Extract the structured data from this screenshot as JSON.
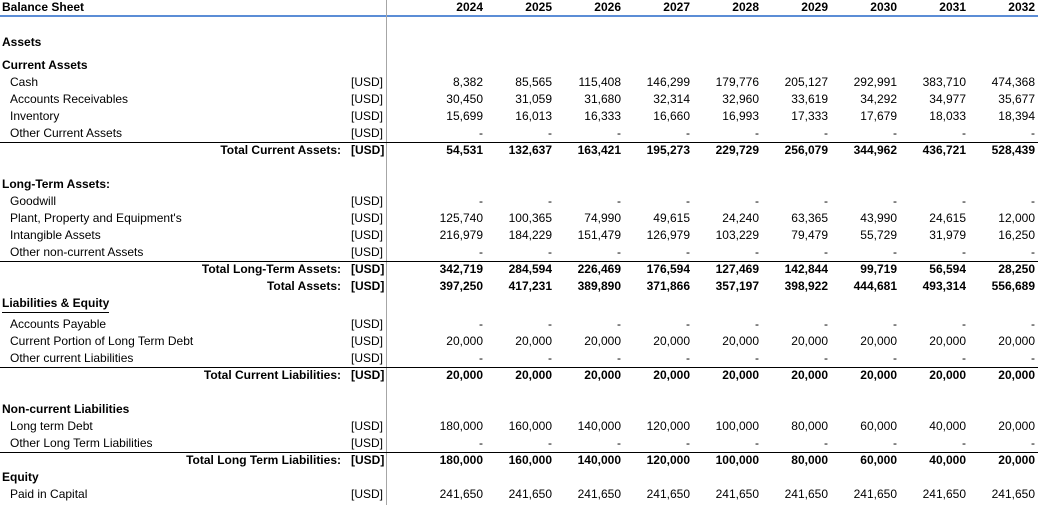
{
  "header": {
    "title": "Balance Sheet",
    "years": [
      "2024",
      "2025",
      "2026",
      "2027",
      "2028",
      "2029",
      "2030",
      "2031",
      "2032"
    ]
  },
  "rows": [
    {
      "type": "section",
      "label": "Assets"
    },
    {
      "type": "subheader",
      "label": "Current Assets"
    },
    {
      "type": "item",
      "label": "Cash",
      "unit": "[USD]",
      "values": [
        "8,382",
        "85,565",
        "115,408",
        "146,299",
        "179,776",
        "205,127",
        "292,991",
        "383,710",
        "474,368"
      ]
    },
    {
      "type": "item",
      "label": "Accounts Receivables",
      "unit": "[USD]",
      "values": [
        "30,450",
        "31,059",
        "31,680",
        "32,314",
        "32,960",
        "33,619",
        "34,292",
        "34,977",
        "35,677"
      ]
    },
    {
      "type": "item",
      "label": "Inventory",
      "unit": "[USD]",
      "values": [
        "15,699",
        "16,013",
        "16,333",
        "16,660",
        "16,993",
        "17,333",
        "17,679",
        "18,033",
        "18,394"
      ]
    },
    {
      "type": "item",
      "label": "Other Current Assets",
      "unit": "[USD]",
      "values": [
        "-",
        "-",
        "-",
        "-",
        "-",
        "-",
        "-",
        "-",
        "-"
      ]
    },
    {
      "type": "total",
      "label": "Total Current Assets:",
      "unit": "[USD]",
      "values": [
        "54,531",
        "132,637",
        "163,421",
        "195,273",
        "229,729",
        "256,079",
        "344,962",
        "436,721",
        "528,439"
      ]
    },
    {
      "type": "blank"
    },
    {
      "type": "subheader",
      "label": "Long-Term Assets:"
    },
    {
      "type": "item",
      "label": "Goodwill",
      "unit": "[USD]",
      "values": [
        "-",
        "-",
        "-",
        "-",
        "-",
        "-",
        "-",
        "-",
        "-"
      ]
    },
    {
      "type": "item",
      "label": "Plant, Property and Equipment's",
      "unit": "[USD]",
      "values": [
        "125,740",
        "100,365",
        "74,990",
        "49,615",
        "24,240",
        "63,365",
        "43,990",
        "24,615",
        "12,000"
      ]
    },
    {
      "type": "item",
      "label": "Intangible Assets",
      "unit": "[USD]",
      "values": [
        "216,979",
        "184,229",
        "151,479",
        "126,979",
        "103,229",
        "79,479",
        "55,729",
        "31,979",
        "16,250"
      ]
    },
    {
      "type": "item",
      "label": "Other non-current Assets",
      "unit": "[USD]",
      "values": [
        "-",
        "-",
        "-",
        "-",
        "-",
        "-",
        "-",
        "-",
        "-"
      ]
    },
    {
      "type": "total",
      "label": "Total Long-Term Assets:",
      "unit": "[USD]",
      "values": [
        "342,719",
        "284,594",
        "226,469",
        "176,594",
        "127,469",
        "142,844",
        "99,719",
        "56,594",
        "28,250"
      ]
    },
    {
      "type": "total2",
      "label": "Total Assets:",
      "unit": "[USD]",
      "values": [
        "397,250",
        "417,231",
        "389,890",
        "371,866",
        "357,197",
        "398,922",
        "444,681",
        "493,314",
        "556,689"
      ]
    },
    {
      "type": "section",
      "label": "Liabilities & Equity"
    },
    {
      "type": "item",
      "label": "Accounts Payable",
      "unit": "[USD]",
      "values": [
        "-",
        "-",
        "-",
        "-",
        "-",
        "-",
        "-",
        "-",
        "-"
      ]
    },
    {
      "type": "item",
      "label": "Current Portion of Long Term Debt",
      "unit": "[USD]",
      "values": [
        "20,000",
        "20,000",
        "20,000",
        "20,000",
        "20,000",
        "20,000",
        "20,000",
        "20,000",
        "20,000"
      ]
    },
    {
      "type": "item",
      "label": "Other current Liabilities",
      "unit": "[USD]",
      "values": [
        "-",
        "-",
        "-",
        "-",
        "-",
        "-",
        "-",
        "-",
        "-"
      ]
    },
    {
      "type": "total",
      "label": "Total Current Liabilities:",
      "unit": "[USD]",
      "values": [
        "20,000",
        "20,000",
        "20,000",
        "20,000",
        "20,000",
        "20,000",
        "20,000",
        "20,000",
        "20,000"
      ]
    },
    {
      "type": "blank"
    },
    {
      "type": "subheader",
      "label": "Non-current Liabilities"
    },
    {
      "type": "item",
      "label": "Long term Debt",
      "unit": "[USD]",
      "values": [
        "180,000",
        "160,000",
        "140,000",
        "120,000",
        "100,000",
        "80,000",
        "60,000",
        "40,000",
        "20,000"
      ]
    },
    {
      "type": "item",
      "label": "Other Long Term Liabilities",
      "unit": "[USD]",
      "values": [
        "-",
        "-",
        "-",
        "-",
        "-",
        "-",
        "-",
        "-",
        "-"
      ]
    },
    {
      "type": "total",
      "label": "Total Long Term Liabilities:",
      "unit": "[USD]",
      "values": [
        "180,000",
        "160,000",
        "140,000",
        "120,000",
        "100,000",
        "80,000",
        "60,000",
        "40,000",
        "20,000"
      ]
    },
    {
      "type": "subheader",
      "label": "Equity"
    },
    {
      "type": "item",
      "label": "Paid in Capital",
      "unit": "[USD]",
      "values": [
        "241,650",
        "241,650",
        "241,650",
        "241,650",
        "241,650",
        "241,650",
        "241,650",
        "241,650",
        "241,650"
      ]
    }
  ]
}
